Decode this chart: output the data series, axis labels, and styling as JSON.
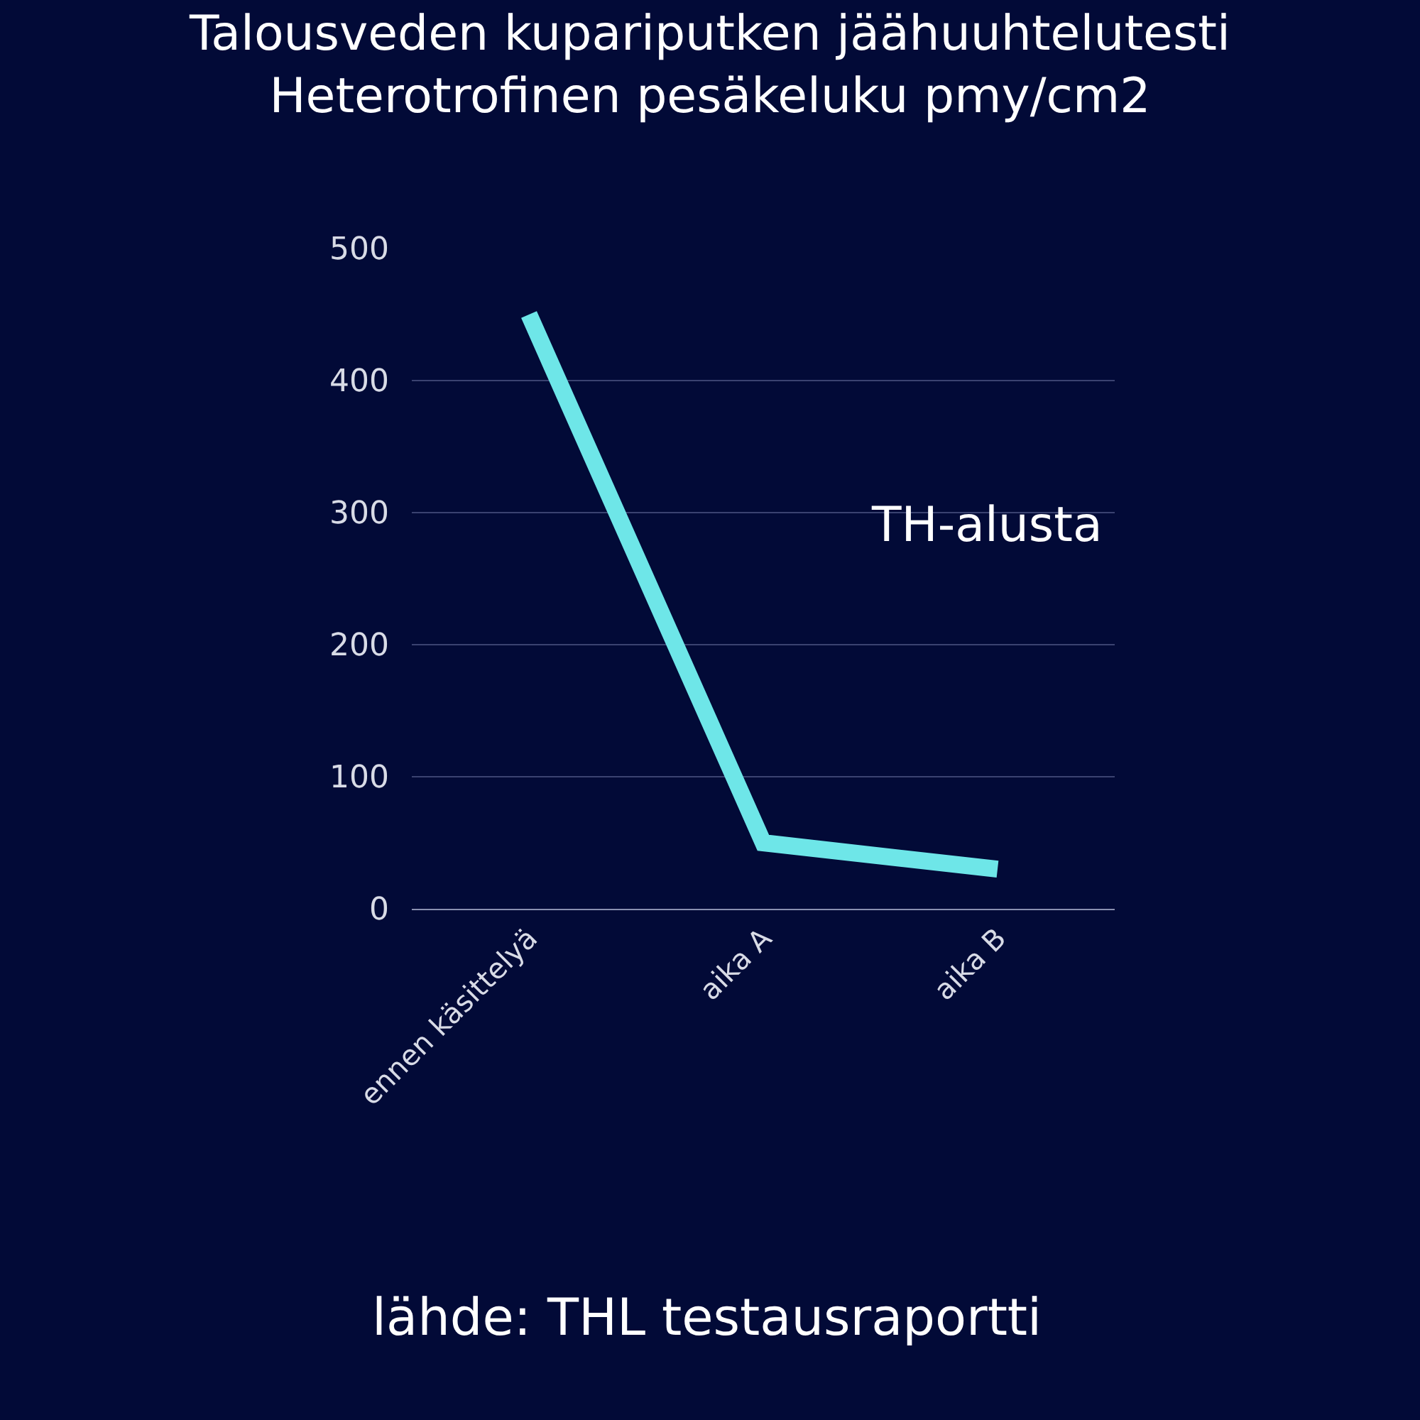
{
  "chart_data": {
    "type": "line",
    "title": "Talousveden kupariputken jäähuuhtelutesti\nHeterotrofinen pesäkeluku pmy/cm2",
    "categories": [
      "ennen käsittelyä",
      "aika A",
      "aika B"
    ],
    "series": [
      {
        "name": "TH-alusta",
        "color": "#6ee6e8",
        "values": [
          450,
          50,
          30
        ]
      }
    ],
    "ylim": [
      0,
      500
    ],
    "yticks": [
      0,
      100,
      200,
      300,
      400,
      500
    ],
    "grid": "y",
    "legend": false,
    "marker": "none",
    "line_style": "solid",
    "annotations": [
      "lähde: THL testausraportti"
    ]
  }
}
